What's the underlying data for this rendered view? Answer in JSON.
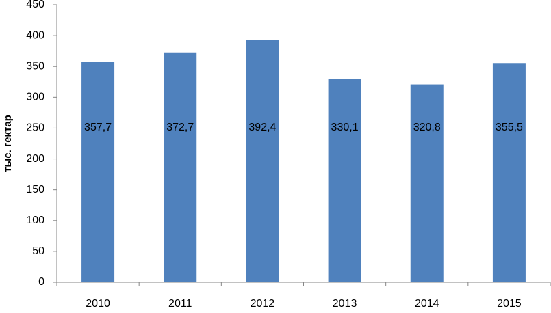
{
  "chart_data": {
    "type": "bar",
    "y_label": "тыс. гектар",
    "categories": [
      "2010",
      "2011",
      "2012",
      "2013",
      "2014",
      "2015"
    ],
    "values": [
      357.7,
      372.7,
      392.4,
      330.1,
      320.8,
      355.5
    ],
    "value_labels": [
      "357,7",
      "372,7",
      "392,4",
      "330,1",
      "320,8",
      "355,5"
    ],
    "color": "#4f81bd",
    "ylim": [
      0,
      450
    ],
    "yticks": [
      0,
      50,
      100,
      150,
      200,
      250,
      300,
      350,
      400,
      450
    ],
    "grid": false
  }
}
